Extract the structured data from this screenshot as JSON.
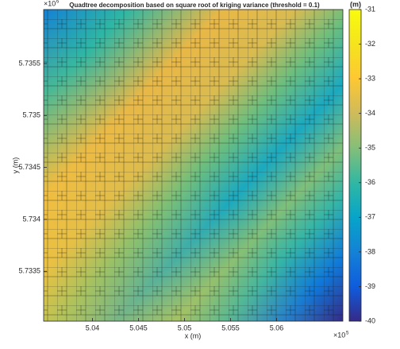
{
  "chart_data": {
    "type": "heatmap",
    "title": "Quadtree decomposition based on square root of kriging variance (threshold = 0.1)",
    "x_label": "x (m)",
    "y_label": "y (m)",
    "x_exponent": {
      "base": "×10",
      "power": "5"
    },
    "y_exponent": {
      "base": "×10",
      "power": "6"
    },
    "xlim": [
      5.0347,
      5.0672
    ],
    "xticks": [
      5.04,
      5.045,
      5.05,
      5.055,
      5.06
    ],
    "ylim": [
      5.73302,
      5.73602
    ],
    "yticks": [
      5.7335,
      5.734,
      5.7345,
      5.735,
      5.7355
    ],
    "colorbar": {
      "label": "(m)",
      "lim": [
        -40,
        -31
      ],
      "ticks": [
        -40,
        -39,
        -38,
        -37,
        -36,
        -35,
        -34,
        -33,
        -32,
        -31
      ]
    }
  }
}
